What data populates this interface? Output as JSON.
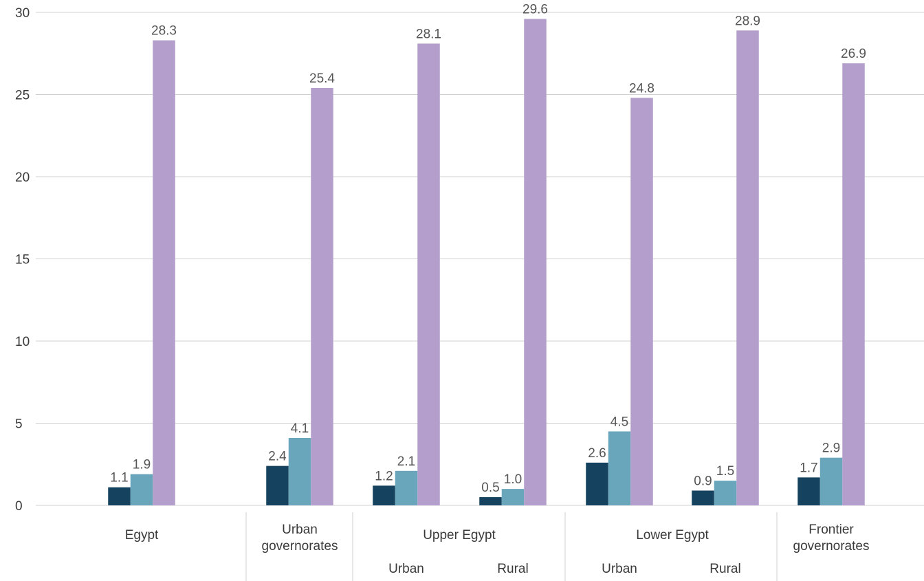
{
  "chart_data": {
    "type": "bar",
    "ylim": [
      0,
      30
    ],
    "yticks": [
      0,
      5,
      10,
      15,
      20,
      25,
      30
    ],
    "grid": true,
    "groups": [
      {
        "label": [
          "Egypt"
        ],
        "sublabel": ""
      },
      {
        "label": [
          "Urban",
          "governorates"
        ],
        "sublabel": ""
      },
      {
        "label": [
          "Upper Egypt"
        ],
        "sublabel": "Urban"
      },
      {
        "label": [],
        "sublabel": "Rural"
      },
      {
        "label": [
          "Lower Egypt"
        ],
        "sublabel": "Urban"
      },
      {
        "label": [],
        "sublabel": "Rural"
      },
      {
        "label": [
          "Frontier",
          "governorates"
        ],
        "sublabel": ""
      }
    ],
    "series": [
      {
        "color": "#14425f",
        "values": [
          1.1,
          2.4,
          1.2,
          0.5,
          2.6,
          0.9,
          1.7
        ],
        "labels": [
          "1.1",
          "2.4",
          "1.2",
          "0.5",
          "2.6",
          "0.9",
          "1.7"
        ]
      },
      {
        "color": "#69a5bb",
        "values": [
          1.9,
          4.1,
          2.1,
          1.0,
          4.5,
          1.5,
          2.9
        ],
        "labels": [
          "1.9",
          "4.1",
          "2.1",
          "1.0",
          "4.5",
          "1.5",
          "2.9"
        ]
      },
      {
        "color": "#b49fcc",
        "values": [
          28.3,
          25.4,
          28.1,
          29.6,
          24.8,
          28.9,
          26.9
        ],
        "labels": [
          "28.3",
          "25.4",
          "28.1",
          "29.6",
          "24.8",
          "28.9",
          "26.9"
        ]
      }
    ]
  }
}
